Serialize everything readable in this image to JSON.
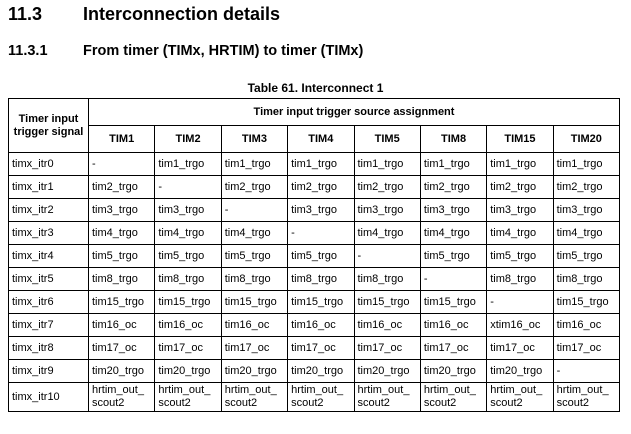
{
  "section": {
    "number": "11.3",
    "title": "Interconnection details"
  },
  "subsection": {
    "number": "11.3.1",
    "title": "From timer (TIMx, HRTIM) to timer (TIMx)"
  },
  "table": {
    "caption": "Table 61. Interconnect 1",
    "corner_header": "Timer input trigger signal",
    "group_header": "Timer input trigger source assignment",
    "columns": [
      "TIM1",
      "TIM2",
      "TIM3",
      "TIM4",
      "TIM5",
      "TIM8",
      "TIM15",
      "TIM20"
    ],
    "rows": [
      [
        "timx_itr0",
        "-",
        "tim1_trgo",
        "tim1_trgo",
        "tim1_trgo",
        "tim1_trgo",
        "tim1_trgo",
        "tim1_trgo",
        "tim1_trgo"
      ],
      [
        "timx_itr1",
        "tim2_trgo",
        "-",
        "tim2_trgo",
        "tim2_trgo",
        "tim2_trgo",
        "tim2_trgo",
        "tim2_trgo",
        "tim2_trgo"
      ],
      [
        "timx_itr2",
        "tim3_trgo",
        "tim3_trgo",
        "-",
        "tim3_trgo",
        "tim3_trgo",
        "tim3_trgo",
        "tim3_trgo",
        "tim3_trgo"
      ],
      [
        "timx_itr3",
        "tim4_trgo",
        "tim4_trgo",
        "tim4_trgo",
        "-",
        "tim4_trgo",
        "tim4_trgo",
        "tim4_trgo",
        "tim4_trgo"
      ],
      [
        "timx_itr4",
        "tim5_trgo",
        "tim5_trgo",
        "tim5_trgo",
        "tim5_trgo",
        "-",
        "tim5_trgo",
        "tim5_trgo",
        "tim5_trgo"
      ],
      [
        "timx_itr5",
        "tim8_trgo",
        "tim8_trgo",
        "tim8_trgo",
        "tim8_trgo",
        "tim8_trgo",
        "-",
        "tim8_trgo",
        "tim8_trgo"
      ],
      [
        "timx_itr6",
        "tim15_trgo",
        "tim15_trgo",
        "tim15_trgo",
        "tim15_trgo",
        "tim15_trgo",
        "tim15_trgo",
        "-",
        "tim15_trgo"
      ],
      [
        "timx_itr7",
        "tim16_oc",
        "tim16_oc",
        "tim16_oc",
        "tim16_oc",
        "tim16_oc",
        "tim16_oc",
        "xtim16_oc",
        "tim16_oc"
      ],
      [
        "timx_itr8",
        "tim17_oc",
        "tim17_oc",
        "tim17_oc",
        "tim17_oc",
        "tim17_oc",
        "tim17_oc",
        "tim17_oc",
        "tim17_oc"
      ],
      [
        "timx_itr9",
        "tim20_trgo",
        "tim20_trgo",
        "tim20_trgo",
        "tim20_trgo",
        "tim20_trgo",
        "tim20_trgo",
        "tim20_trgo",
        "-"
      ],
      [
        "timx_itr10",
        "hrtim_out_ scout2",
        "hrtim_out_ scout2",
        "hrtim_out_ scout2",
        "hrtim_out_ scout2",
        "hrtim_out_ scout2",
        "hrtim_out_ scout2",
        "hrtim_out_ scout2",
        "hrtim_out_ scout2"
      ]
    ]
  }
}
